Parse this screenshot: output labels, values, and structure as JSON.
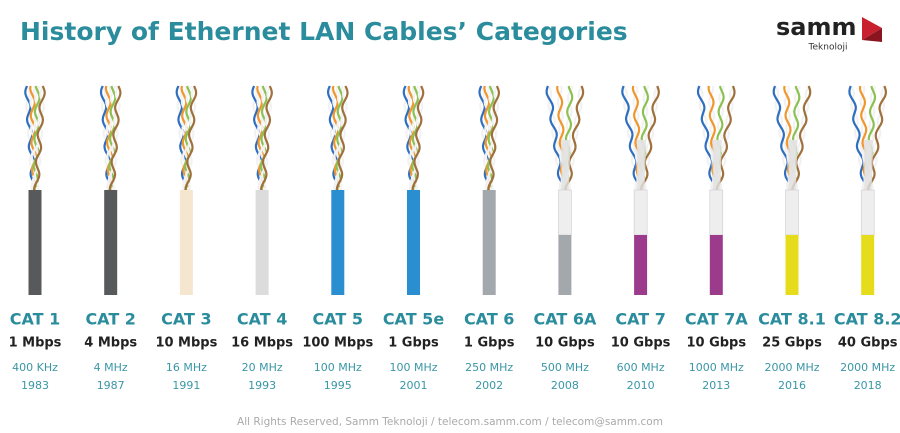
{
  "header": {
    "title": "History of Ethernet LAN Cables’ Categories",
    "logo": "samm",
    "logo_sub": "Teknoloji"
  },
  "cables": [
    {
      "name": "CAT 1",
      "speed": "1 Mbps",
      "frequency": "400 KHz",
      "year": "1983",
      "color": "#58595b"
    },
    {
      "name": "CAT 2",
      "speed": "4 Mbps",
      "frequency": "4 MHz",
      "year": "1987",
      "color": "#58595b"
    },
    {
      "name": "CAT 3",
      "speed": "10 Mbps",
      "frequency": "16 MHz",
      "year": "1991",
      "color": "#f4e6cf"
    },
    {
      "name": "CAT 4",
      "speed": "16 Mbps",
      "frequency": "20 MHz",
      "year": "1993",
      "color": "#dcdcdc"
    },
    {
      "name": "CAT 5",
      "speed": "100 Mbps",
      "frequency": "100 MHz",
      "year": "1995",
      "color": "#2a8fd0"
    },
    {
      "name": "CAT 5e",
      "speed": "1 Gbps",
      "frequency": "100 MHz",
      "year": "2001",
      "color": "#2a8fd0"
    },
    {
      "name": "CAT 6",
      "speed": "1 Gbps",
      "frequency": "250 MHz",
      "year": "2002",
      "color": "#a3a8ad"
    },
    {
      "name": "CAT 6A",
      "speed": "10 Gbps",
      "frequency": "500 MHz",
      "year": "2008",
      "color": "#a3a8ad",
      "top_color": "#eeeeee"
    },
    {
      "name": "CAT 7",
      "speed": "10 Gbps",
      "frequency": "600 MHz",
      "year": "2010",
      "color": "#9c3b8c",
      "top_color": "#eeeeee"
    },
    {
      "name": "CAT 7A",
      "speed": "10 Gbps",
      "frequency": "1000 MHz",
      "year": "2013",
      "color": "#9c3b8c",
      "top_color": "#eeeeee"
    },
    {
      "name": "CAT 8.1",
      "speed": "25 Gbps",
      "frequency": "2000 MHz",
      "year": "2016",
      "color": "#e6dc1c",
      "top_color": "#eeeeee"
    },
    {
      "name": "CAT 8.2",
      "speed": "40 Gbps",
      "frequency": "2000 MHz",
      "year": "2018",
      "color": "#e6dc1c",
      "top_color": "#eeeeee"
    }
  ],
  "footer": "All Rights Reserved, Samm Teknoloji / telecom.samm.com / telecom@samm.com"
}
